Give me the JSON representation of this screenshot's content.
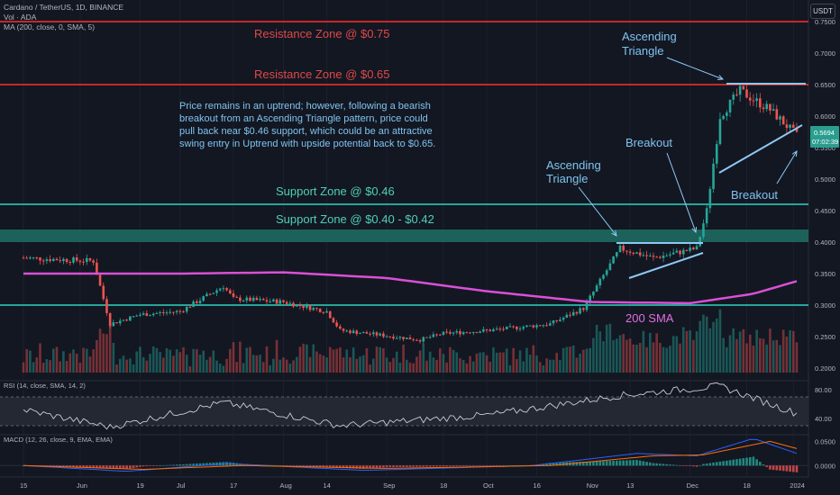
{
  "header": {
    "symbol_line": "Cardano / TetherUS, 1D, BINANCE",
    "vol_line": "Vol · ADA",
    "ma_line": "MA (200, close, 0, SMA, 5)",
    "currency_button": "USDT"
  },
  "price_axis": {
    "ticks": [
      "0.7500",
      "0.7000",
      "0.6500",
      "0.6000",
      "0.5500",
      "0.5000",
      "0.4500",
      "0.4000",
      "0.3500",
      "0.3000",
      "0.2500",
      "0.2000"
    ],
    "last_price": "0.5694",
    "countdown": "07:02:39"
  },
  "rsi_axis": {
    "ticks": [
      "80.00",
      "40.00"
    ]
  },
  "macd_axis": {
    "ticks": [
      "0.0500",
      "0.0000"
    ]
  },
  "time_axis": [
    "15",
    "Jun",
    "19",
    "Jul",
    "17",
    "Aug",
    "14",
    "Sep",
    "18",
    "Oct",
    "16",
    "Nov",
    "13",
    "Dec",
    "18",
    "2024"
  ],
  "annotations": {
    "resistance_high": "Resistance Zone @ $0.75",
    "resistance_low": "Resistance Zone @ $0.65",
    "support_high": "Support Zone @ $0.46",
    "support_low": "Support Zone @ $0.40 - $0.42",
    "note_lines": [
      "Price remains in an uptrend; however, following a bearish",
      "breakout from an Ascending Triangle pattern, price could",
      "pull back near $0.46 support, which could be an attractive",
      "swing entry in Uptrend with upside potential back to $0.65."
    ],
    "triangle_top_1": "Ascending",
    "triangle_top_2": "Triangle",
    "triangle_mid_1": "Ascending",
    "triangle_mid_2": "Triangle",
    "breakout_up": "Breakout",
    "breakout_down": "Breakout",
    "sma_label": "200 SMA"
  },
  "indicators": {
    "rsi_title": "RSI (14, close, SMA, 14, 2)",
    "macd_title": "MACD (12, 26, close, 9, EMA, EMA)"
  },
  "colors": {
    "background": "#131722",
    "up": "#26a69a",
    "down": "#ef5350",
    "resistance": "#d32f2f",
    "support": "#26a69a",
    "sma": "#da50d6",
    "annotation": "#7fc4f0",
    "triangle": "#8fc8f4"
  },
  "chart_data": {
    "type": "candlestick",
    "title": "Cardano / TetherUS, 1D, BINANCE",
    "period": "2023-05-15 to 2024-01-02",
    "ylim": [
      0.2,
      0.76
    ],
    "levels": {
      "resistance": [
        0.75,
        0.65
      ],
      "support": [
        0.46,
        0.3
      ],
      "support_zone": [
        0.4,
        0.42
      ]
    },
    "last_price": 0.5694,
    "price_anchors": [
      {
        "date": "2023-05-15",
        "close": 0.375
      },
      {
        "date": "2023-06-05",
        "close": 0.37
      },
      {
        "date": "2023-06-10",
        "close": 0.27
      },
      {
        "date": "2023-06-19",
        "close": 0.285
      },
      {
        "date": "2023-07-01",
        "close": 0.29
      },
      {
        "date": "2023-07-14",
        "close": 0.33
      },
      {
        "date": "2023-07-17",
        "close": 0.31
      },
      {
        "date": "2023-08-01",
        "close": 0.305
      },
      {
        "date": "2023-08-14",
        "close": 0.29
      },
      {
        "date": "2023-08-18",
        "close": 0.26
      },
      {
        "date": "2023-09-11",
        "close": 0.245
      },
      {
        "date": "2023-09-18",
        "close": 0.255
      },
      {
        "date": "2023-10-02",
        "close": 0.26
      },
      {
        "date": "2023-10-20",
        "close": 0.27
      },
      {
        "date": "2023-10-30",
        "close": 0.295
      },
      {
        "date": "2023-11-10",
        "close": 0.39
      },
      {
        "date": "2023-11-20",
        "close": 0.375
      },
      {
        "date": "2023-12-03",
        "close": 0.39
      },
      {
        "date": "2023-12-06",
        "close": 0.45
      },
      {
        "date": "2023-12-10",
        "close": 0.6
      },
      {
        "date": "2023-12-16",
        "close": 0.64
      },
      {
        "date": "2023-12-25",
        "close": 0.61
      },
      {
        "date": "2024-01-02",
        "close": 0.5694
      }
    ],
    "sma_200": [
      {
        "date": "2023-05-15",
        "value": 0.35
      },
      {
        "date": "2023-07-01",
        "value": 0.35
      },
      {
        "date": "2023-08-01",
        "value": 0.352
      },
      {
        "date": "2023-09-01",
        "value": 0.343
      },
      {
        "date": "2023-10-01",
        "value": 0.322
      },
      {
        "date": "2023-11-01",
        "value": 0.305
      },
      {
        "date": "2023-12-01",
        "value": 0.303
      },
      {
        "date": "2023-12-20",
        "value": 0.318
      },
      {
        "date": "2024-01-02",
        "value": 0.338
      }
    ],
    "rsi": {
      "ylim": [
        20,
        90
      ],
      "bands": [
        70,
        30
      ],
      "points": [
        {
          "date": "2023-05-15",
          "value": 52
        },
        {
          "date": "2023-06-10",
          "value": 28
        },
        {
          "date": "2023-07-14",
          "value": 62
        },
        {
          "date": "2023-08-18",
          "value": 30
        },
        {
          "date": "2023-10-02",
          "value": 45
        },
        {
          "date": "2023-11-10",
          "value": 72
        },
        {
          "date": "2023-12-10",
          "value": 85
        },
        {
          "date": "2024-01-02",
          "value": 47
        }
      ]
    },
    "macd": {
      "ylim": [
        -0.02,
        0.06
      ],
      "macd": [
        {
          "date": "2023-05-15",
          "value": 0.0
        },
        {
          "date": "2023-06-15",
          "value": -0.012
        },
        {
          "date": "2023-07-15",
          "value": 0.004
        },
        {
          "date": "2023-08-25",
          "value": -0.01
        },
        {
          "date": "2023-10-15",
          "value": 0.0
        },
        {
          "date": "2023-11-15",
          "value": 0.025
        },
        {
          "date": "2023-12-03",
          "value": 0.02
        },
        {
          "date": "2023-12-20",
          "value": 0.056
        },
        {
          "date": "2024-01-02",
          "value": 0.025
        }
      ],
      "signal": [
        {
          "date": "2023-05-15",
          "value": 0.0
        },
        {
          "date": "2023-06-20",
          "value": -0.008
        },
        {
          "date": "2023-07-20",
          "value": 0.0
        },
        {
          "date": "2023-09-01",
          "value": -0.006
        },
        {
          "date": "2023-10-20",
          "value": 0.0
        },
        {
          "date": "2023-11-20",
          "value": 0.02
        },
        {
          "date": "2023-12-05",
          "value": 0.022
        },
        {
          "date": "2023-12-25",
          "value": 0.05
        },
        {
          "date": "2024-01-02",
          "value": 0.035
        }
      ]
    }
  }
}
